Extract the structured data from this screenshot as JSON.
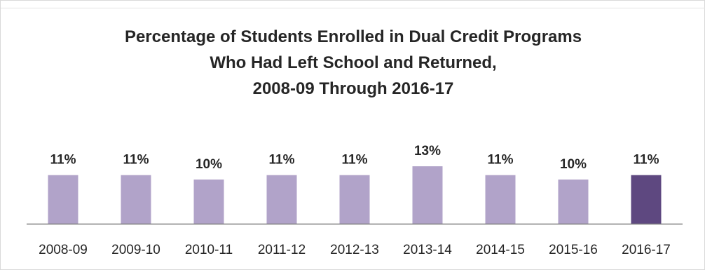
{
  "chart_data": {
    "type": "bar",
    "title_lines": [
      "Percentage of Students Enrolled in Dual Credit Programs",
      "Who Had Left School and Returned,",
      "2008-09 Through 2016-17"
    ],
    "categories": [
      "2008-09",
      "2009-10",
      "2010-11",
      "2011-12",
      "2012-13",
      "2013-14",
      "2014-15",
      "2015-16",
      "2016-17"
    ],
    "values": [
      11,
      11,
      10,
      11,
      11,
      13,
      11,
      10,
      11
    ],
    "data_labels": [
      "11%",
      "11%",
      "10%",
      "11%",
      "11%",
      "13%",
      "11%",
      "10%",
      "11%"
    ],
    "unit": "%",
    "ylim": [
      0,
      13
    ],
    "grid": false,
    "legend": "none",
    "colors": {
      "bar": "#b1a3c9",
      "highlight_bar": "#5e4880",
      "highlight_category": "2016-17",
      "axis": "#7f7f7f",
      "text": "#262626"
    }
  }
}
